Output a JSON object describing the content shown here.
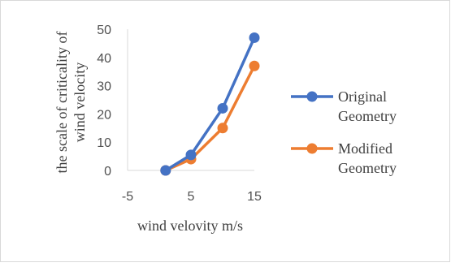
{
  "chart_data": {
    "type": "line",
    "x": [
      1,
      5,
      10,
      15
    ],
    "series": [
      {
        "name": "Original Geometry",
        "values": [
          0,
          5.5,
          22,
          47
        ],
        "color": "#4472C4"
      },
      {
        "name": "Modified Geometry",
        "values": [
          0,
          4,
          15,
          37
        ],
        "color": "#ED7D31"
      }
    ],
    "xlabel": "wind velovity m/s",
    "ylabel": "the scale of criticality of wind velocity",
    "xlim": [
      -5,
      15
    ],
    "ylim": [
      0,
      50
    ],
    "x_ticks": [
      "-5",
      "5",
      "15"
    ],
    "y_ticks": [
      "0",
      "10",
      "20",
      "30",
      "40",
      "50"
    ],
    "grid": false,
    "legend_position": "right",
    "legend_lines": [
      [
        "Original",
        "Geometry"
      ],
      [
        "Modified",
        "Geometry"
      ]
    ],
    "ylabel_lines": [
      "the scale of criticality of",
      "wind velocity"
    ]
  }
}
